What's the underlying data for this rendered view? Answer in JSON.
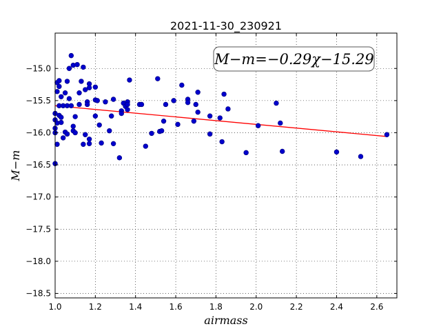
{
  "chart_data": {
    "type": "scatter",
    "title": "2021-11-30_230921",
    "xlabel": "airmass",
    "ylabel": "M−m",
    "xlim": [
      1.0,
      2.7
    ],
    "ylim": [
      -18.57,
      -14.45
    ],
    "xticks": [
      1.0,
      1.2,
      1.4,
      1.6,
      1.8,
      2.0,
      2.2,
      2.4,
      2.6
    ],
    "yticks": [
      -15.0,
      -15.5,
      -16.0,
      -16.5,
      -17.0,
      -17.5,
      -18.0,
      -18.5
    ],
    "xtick_labels": [
      "1.0",
      "1.2",
      "1.4",
      "1.6",
      "1.8",
      "2.0",
      "2.2",
      "2.4",
      "2.6"
    ],
    "ytick_labels": [
      "−15.0",
      "−15.5",
      "−16.0",
      "−16.5",
      "−17.0",
      "−17.5",
      "−18.0",
      "−18.5"
    ],
    "grid": true,
    "annotation": "M−m=−0.29χ−15.29",
    "fit": {
      "slope": -0.29,
      "intercept": -15.29,
      "x_range": [
        1.0,
        2.65
      ],
      "color": "#ff0000"
    },
    "point_color": "#0000cc",
    "points": [
      [
        1.0,
        -16.48
      ],
      [
        1.0,
        -15.7
      ],
      [
        1.0,
        -15.8
      ],
      [
        1.0,
        -15.93
      ],
      [
        1.0,
        -16.0
      ],
      [
        1.01,
        -15.22
      ],
      [
        1.01,
        -15.36
      ],
      [
        1.01,
        -15.85
      ],
      [
        1.01,
        -16.18
      ],
      [
        1.02,
        -15.19
      ],
      [
        1.02,
        -15.28
      ],
      [
        1.02,
        -15.58
      ],
      [
        1.02,
        -15.73
      ],
      [
        1.03,
        -15.44
      ],
      [
        1.03,
        -15.76
      ],
      [
        1.03,
        -15.84
      ],
      [
        1.04,
        -15.58
      ],
      [
        1.04,
        -16.08
      ],
      [
        1.05,
        -15.38
      ],
      [
        1.05,
        -15.99
      ],
      [
        1.06,
        -15.2
      ],
      [
        1.06,
        -15.58
      ],
      [
        1.06,
        -16.02
      ],
      [
        1.07,
        -15.0
      ],
      [
        1.07,
        -15.47
      ],
      [
        1.08,
        -14.8
      ],
      [
        1.08,
        -15.58
      ],
      [
        1.09,
        -14.95
      ],
      [
        1.09,
        -15.9
      ],
      [
        1.09,
        -15.97
      ],
      [
        1.1,
        -15.75
      ],
      [
        1.1,
        -16.0
      ],
      [
        1.11,
        -14.94
      ],
      [
        1.12,
        -15.38
      ],
      [
        1.12,
        -15.56
      ],
      [
        1.13,
        -15.2
      ],
      [
        1.14,
        -14.98
      ],
      [
        1.14,
        -16.18
      ],
      [
        1.15,
        -15.33
      ],
      [
        1.15,
        -16.03
      ],
      [
        1.16,
        -15.52
      ],
      [
        1.16,
        -15.56
      ],
      [
        1.17,
        -15.24
      ],
      [
        1.17,
        -15.3
      ],
      [
        1.17,
        -16.1
      ],
      [
        1.17,
        -16.17
      ],
      [
        1.2,
        -15.29
      ],
      [
        1.2,
        -15.49
      ],
      [
        1.2,
        -15.74
      ],
      [
        1.21,
        -15.5
      ],
      [
        1.22,
        -15.88
      ],
      [
        1.23,
        -16.16
      ],
      [
        1.25,
        -15.52
      ],
      [
        1.27,
        -15.97
      ],
      [
        1.28,
        -15.74
      ],
      [
        1.29,
        -15.48
      ],
      [
        1.29,
        -16.17
      ],
      [
        1.32,
        -16.39
      ],
      [
        1.33,
        -15.66
      ],
      [
        1.33,
        -15.7
      ],
      [
        1.34,
        -15.54
      ],
      [
        1.35,
        -15.59
      ],
      [
        1.36,
        -15.52
      ],
      [
        1.36,
        -15.56
      ],
      [
        1.36,
        -15.64
      ],
      [
        1.37,
        -15.18
      ],
      [
        1.42,
        -15.56
      ],
      [
        1.43,
        -15.56
      ],
      [
        1.45,
        -16.21
      ],
      [
        1.48,
        -16.01
      ],
      [
        1.51,
        -15.16
      ],
      [
        1.52,
        -15.98
      ],
      [
        1.53,
        -15.97
      ],
      [
        1.54,
        -15.82
      ],
      [
        1.55,
        -15.56
      ],
      [
        1.59,
        -15.5
      ],
      [
        1.61,
        -15.87
      ],
      [
        1.63,
        -15.26
      ],
      [
        1.66,
        -15.48
      ],
      [
        1.66,
        -15.53
      ],
      [
        1.69,
        -15.82
      ],
      [
        1.7,
        -15.56
      ],
      [
        1.71,
        -15.37
      ],
      [
        1.71,
        -15.68
      ],
      [
        1.77,
        -15.74
      ],
      [
        1.77,
        -16.02
      ],
      [
        1.82,
        -15.77
      ],
      [
        1.83,
        -16.14
      ],
      [
        1.84,
        -15.4
      ],
      [
        1.86,
        -15.63
      ],
      [
        1.95,
        -16.31
      ],
      [
        2.01,
        -15.89
      ],
      [
        2.1,
        -15.54
      ],
      [
        2.12,
        -15.85
      ],
      [
        2.13,
        -16.29
      ],
      [
        2.4,
        -16.3
      ],
      [
        2.52,
        -16.37
      ],
      [
        2.65,
        -16.03
      ]
    ]
  }
}
